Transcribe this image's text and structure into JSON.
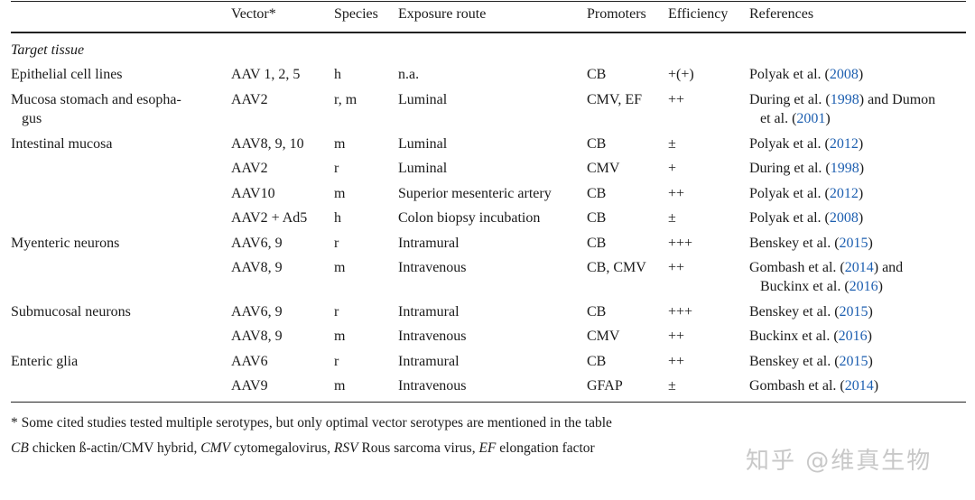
{
  "headers": {
    "vector": "Vector*",
    "species": "Species",
    "route": "Exposure route",
    "promoters": "Promoters",
    "efficiency": "Efficiency",
    "references": "References"
  },
  "section": "Target tissue",
  "rows": [
    {
      "tissue": "Epithelial cell lines",
      "vector": "AAV 1, 2, 5",
      "species": "h",
      "route": "n.a.",
      "promoter": "CB",
      "efficiency": "+(+)",
      "ref": {
        "a": "Polyak et al. (",
        "y1": "2008",
        "b": ")"
      }
    },
    {
      "tissue": "Mucosa stomach and esopha-",
      "tissue2": "gus",
      "vector": "AAV2",
      "species": "r, m",
      "route": "Luminal",
      "promoter": "CMV, EF",
      "efficiency": "++",
      "ref": {
        "a": "During et al. (",
        "y1": "1998",
        "b": ") and Dumon",
        "c": "et al. (",
        "y2": "2001",
        "d": ")"
      }
    },
    {
      "tissue": "Intestinal mucosa",
      "vector": "AAV8, 9, 10",
      "species": "m",
      "route": "Luminal",
      "promoter": "CB",
      "efficiency": "±",
      "ref": {
        "a": "Polyak et al. (",
        "y1": "2012",
        "b": ")"
      }
    },
    {
      "tissue": "",
      "vector": "AAV2",
      "species": "r",
      "route": "Luminal",
      "promoter": "CMV",
      "efficiency": "+",
      "ref": {
        "a": "During et al. (",
        "y1": "1998",
        "b": ")"
      }
    },
    {
      "tissue": "",
      "vector": "AAV10",
      "species": "m",
      "route": "Superior mesenteric artery",
      "promoter": "CB",
      "efficiency": "++",
      "ref": {
        "a": "Polyak et al. (",
        "y1": "2012",
        "b": ")"
      }
    },
    {
      "tissue": "",
      "vector": "AAV2 + Ad5",
      "species": "h",
      "route": "Colon biopsy incubation",
      "promoter": "CB",
      "efficiency": "±",
      "ref": {
        "a": "Polyak et al. (",
        "y1": "2008",
        "b": ")"
      }
    },
    {
      "tissue": "Myenteric neurons",
      "vector": "AAV6, 9",
      "species": "r",
      "route": "Intramural",
      "promoter": "CB",
      "efficiency": "+++",
      "ref": {
        "a": "Benskey et al. (",
        "y1": "2015",
        "b": ")"
      }
    },
    {
      "tissue": "",
      "vector": "AAV8, 9",
      "species": "m",
      "route": "Intravenous",
      "promoter": "CB, CMV",
      "efficiency": "++",
      "ref": {
        "a": "Gombash et al. (",
        "y1": "2014",
        "b": ") and",
        "c": "Buckinx et al. (",
        "y2": "2016",
        "d": ")"
      }
    },
    {
      "tissue": "Submucosal neurons",
      "vector": "AAV6, 9",
      "species": "r",
      "route": "Intramural",
      "promoter": "CB",
      "efficiency": "+++",
      "ref": {
        "a": "Benskey et al. (",
        "y1": "2015",
        "b": ")"
      }
    },
    {
      "tissue": "",
      "vector": "AAV8, 9",
      "species": "m",
      "route": "Intravenous",
      "promoter": "CMV",
      "efficiency": "++",
      "ref": {
        "a": "Buckinx et al. (",
        "y1": "2016",
        "b": ")"
      }
    },
    {
      "tissue": "Enteric glia",
      "vector": "AAV6",
      "species": "r",
      "route": "Intramural",
      "promoter": "CB",
      "efficiency": "++",
      "ref": {
        "a": "Benskey et al. (",
        "y1": "2015",
        "b": ")"
      }
    },
    {
      "tissue": "",
      "vector": "AAV9",
      "species": "m",
      "route": "Intravenous",
      "promoter": "GFAP",
      "efficiency": "±",
      "ref": {
        "a": "Gombash et al. (",
        "y1": "2014",
        "b": ")"
      }
    }
  ],
  "footnotes": {
    "note1": "* Some cited studies tested multiple serotypes, but only optimal vector serotypes are mentioned in the table",
    "abbr": [
      {
        "k": "CB",
        "v": " chicken ß-actin/CMV hybrid, "
      },
      {
        "k": "CMV",
        "v": " cytomegalovirus, "
      },
      {
        "k": "RSV",
        "v": " Rous sarcoma virus, "
      },
      {
        "k": "EF",
        "v": " elongation factor"
      }
    ]
  },
  "watermark": "知乎 @维真生物",
  "colors": {
    "link": "#1d5fb0",
    "rule": "#222222",
    "watermark": "#c8c8c8"
  }
}
